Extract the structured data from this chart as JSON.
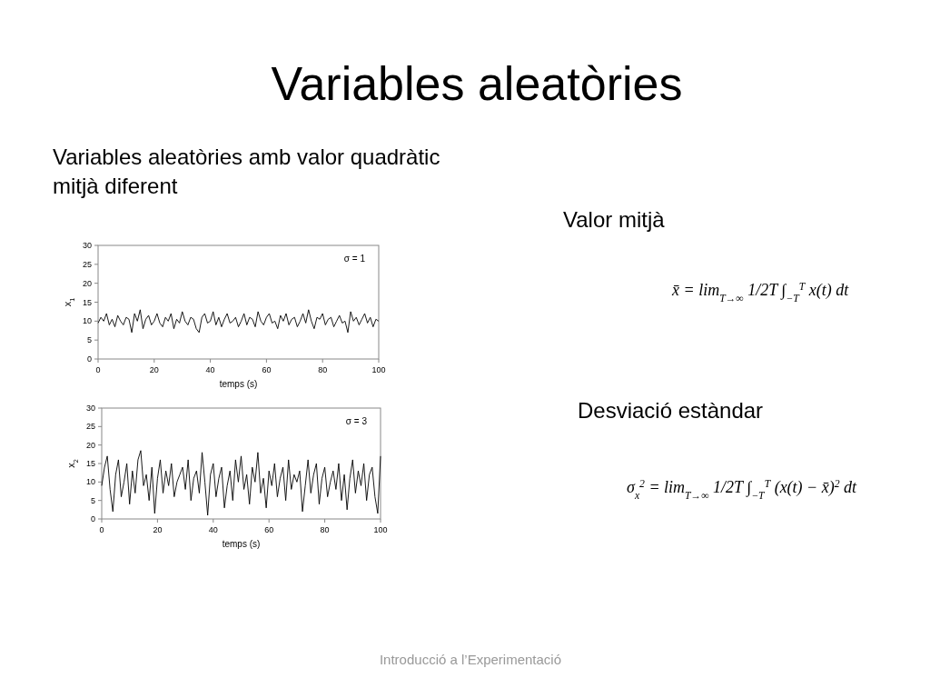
{
  "chart_data": [
    {
      "type": "line",
      "title": "Variables aleatòries",
      "subtitle": "Variables aleatòries amb valor quadràtic mitjà diferent",
      "xlabel": "temps (s)",
      "ylabel": "x$_{1}$",
      "xlim": [
        0,
        100
      ],
      "ylim": [
        0,
        30
      ],
      "xticks": [
        0,
        20,
        40,
        60,
        80,
        100
      ],
      "yticks": [
        0,
        5,
        10,
        15,
        20,
        25,
        30
      ],
      "annotations": [
        "σ = 1",
        "Valor mitjà",
        "x̄ = lim$_{T→∞}$ 1/2T ∫$_{−T}$$^{T}$ x(t) dt",
        "Desviació estàndar",
        "σ$_{x}$$^{2}$ = lim$_{T→∞}$ 1/2T ∫$_{−T}$$^{T}$ (x(t) − x̄)$^{2}$ dt",
        "Introducció a l’Experimentació"
      ],
      "x": [
        0,
        1,
        2,
        3,
        4,
        5,
        6,
        7,
        8,
        9,
        10,
        11,
        12,
        13,
        14,
        15,
        16,
        17,
        18,
        19,
        20,
        21,
        22,
        23,
        24,
        25,
        26,
        27,
        28,
        29,
        30,
        31,
        32,
        33,
        34,
        35,
        36,
        37,
        38,
        39,
        40,
        41,
        42,
        43,
        44,
        45,
        46,
        47,
        48,
        49,
        50,
        51,
        52,
        53,
        54,
        55,
        56,
        57,
        58,
        59,
        60,
        61,
        62,
        63,
        64,
        65,
        66,
        67,
        68,
        69,
        70,
        71,
        72,
        73,
        74,
        75,
        76,
        77,
        78,
        79,
        80,
        81,
        82,
        83,
        84,
        85,
        86,
        87,
        88,
        89,
        90,
        91,
        92,
        93,
        94,
        95,
        96,
        97,
        98,
        99,
        100
      ],
      "series": [
        {
          "color": "#000000",
          "values": [
            9.5,
            11,
            10,
            12,
            9,
            10.5,
            8.5,
            11.5,
            10,
            9,
            11,
            10.5,
            7,
            12,
            10,
            13,
            8,
            10.5,
            11.5,
            9,
            10,
            12,
            9.5,
            8.5,
            11,
            10,
            12,
            8,
            10.5,
            9.5,
            12.5,
            10,
            9,
            11,
            10.5,
            8,
            7,
            11,
            12,
            9.5,
            10,
            12.5,
            9,
            11,
            8.5,
            10.5,
            12,
            9.5,
            10,
            11,
            8.5,
            10,
            12,
            9,
            11,
            10.5,
            8.5,
            12.5,
            10,
            9,
            11,
            12,
            9.5,
            10,
            8,
            11.5,
            10,
            12,
            9,
            10.5,
            11,
            8.5,
            10,
            12,
            9.5,
            13,
            10,
            8,
            11,
            10.5,
            12,
            9,
            10.5,
            11,
            8.5,
            10,
            11.5,
            9.5,
            10,
            7,
            12.5,
            10,
            11,
            9,
            10.5,
            12,
            9.5,
            11,
            8.5,
            10.5,
            10
          ]
        }
      ]
    },
    {
      "type": "line",
      "xlabel": "temps (s)",
      "ylabel": "x$_{2}$",
      "xlim": [
        0,
        100
      ],
      "ylim": [
        0,
        30
      ],
      "xticks": [
        0,
        20,
        40,
        60,
        80,
        100
      ],
      "yticks": [
        0,
        5,
        10,
        15,
        20,
        25,
        30
      ],
      "annotations": [
        "σ = 3"
      ],
      "x": [
        0,
        1,
        2,
        3,
        4,
        5,
        6,
        7,
        8,
        9,
        10,
        11,
        12,
        13,
        14,
        15,
        16,
        17,
        18,
        19,
        20,
        21,
        22,
        23,
        24,
        25,
        26,
        27,
        28,
        29,
        30,
        31,
        32,
        33,
        34,
        35,
        36,
        37,
        38,
        39,
        40,
        41,
        42,
        43,
        44,
        45,
        46,
        47,
        48,
        49,
        50,
        51,
        52,
        53,
        54,
        55,
        56,
        57,
        58,
        59,
        60,
        61,
        62,
        63,
        64,
        65,
        66,
        67,
        68,
        69,
        70,
        71,
        72,
        73,
        74,
        75,
        76,
        77,
        78,
        79,
        80,
        81,
        82,
        83,
        84,
        85,
        86,
        87,
        88,
        89,
        90,
        91,
        92,
        93,
        94,
        95,
        96,
        97,
        98,
        99,
        100
      ],
      "series": [
        {
          "color": "#000000",
          "values": [
            9,
            14,
            17,
            8,
            2,
            12,
            16,
            6,
            10,
            15,
            4,
            13,
            7,
            16,
            18.5,
            9,
            12,
            5,
            14,
            1.5,
            11,
            16,
            7,
            13,
            9,
            15,
            6,
            10,
            12,
            14,
            8,
            16,
            5,
            11,
            13,
            7,
            18,
            10,
            1,
            12,
            15,
            6,
            11,
            14,
            3,
            9,
            13,
            5,
            16,
            10,
            17,
            8,
            12,
            4,
            14,
            10,
            18,
            7,
            11,
            3,
            13,
            9,
            15,
            6,
            11,
            14,
            5,
            16,
            8,
            12,
            10,
            13,
            2,
            9,
            16,
            7,
            12,
            15,
            4,
            11,
            14,
            6,
            10,
            13,
            8,
            15,
            5,
            12,
            2.5,
            11,
            16,
            7,
            13,
            9,
            15,
            5,
            12,
            14,
            6,
            1.5,
            17
          ]
        }
      ]
    }
  ]
}
